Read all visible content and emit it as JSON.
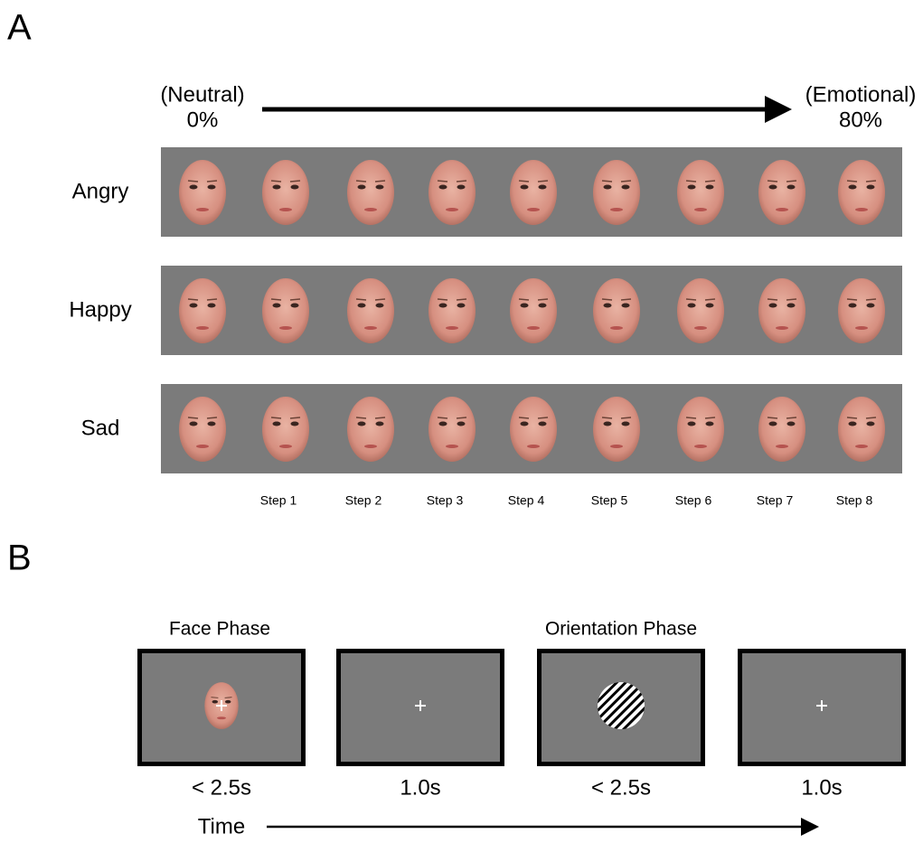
{
  "panel_a": {
    "label": "A",
    "start": {
      "label": "(Neutral)",
      "percent": "0%"
    },
    "end": {
      "label": "(Emotional)",
      "percent": "80%"
    },
    "rows": [
      "Angry",
      "Happy",
      "Sad"
    ],
    "steps": [
      "Step 1",
      "Step 2",
      "Step 3",
      "Step 4",
      "Step 5",
      "Step 6",
      "Step 7",
      "Step 8"
    ]
  },
  "panel_b": {
    "label": "B",
    "phases": [
      "Face Phase",
      "Orientation Phase"
    ],
    "durations": [
      "< 2.5s",
      "1.0s",
      "< 2.5s",
      "1.0s"
    ],
    "time_label": "Time"
  }
}
